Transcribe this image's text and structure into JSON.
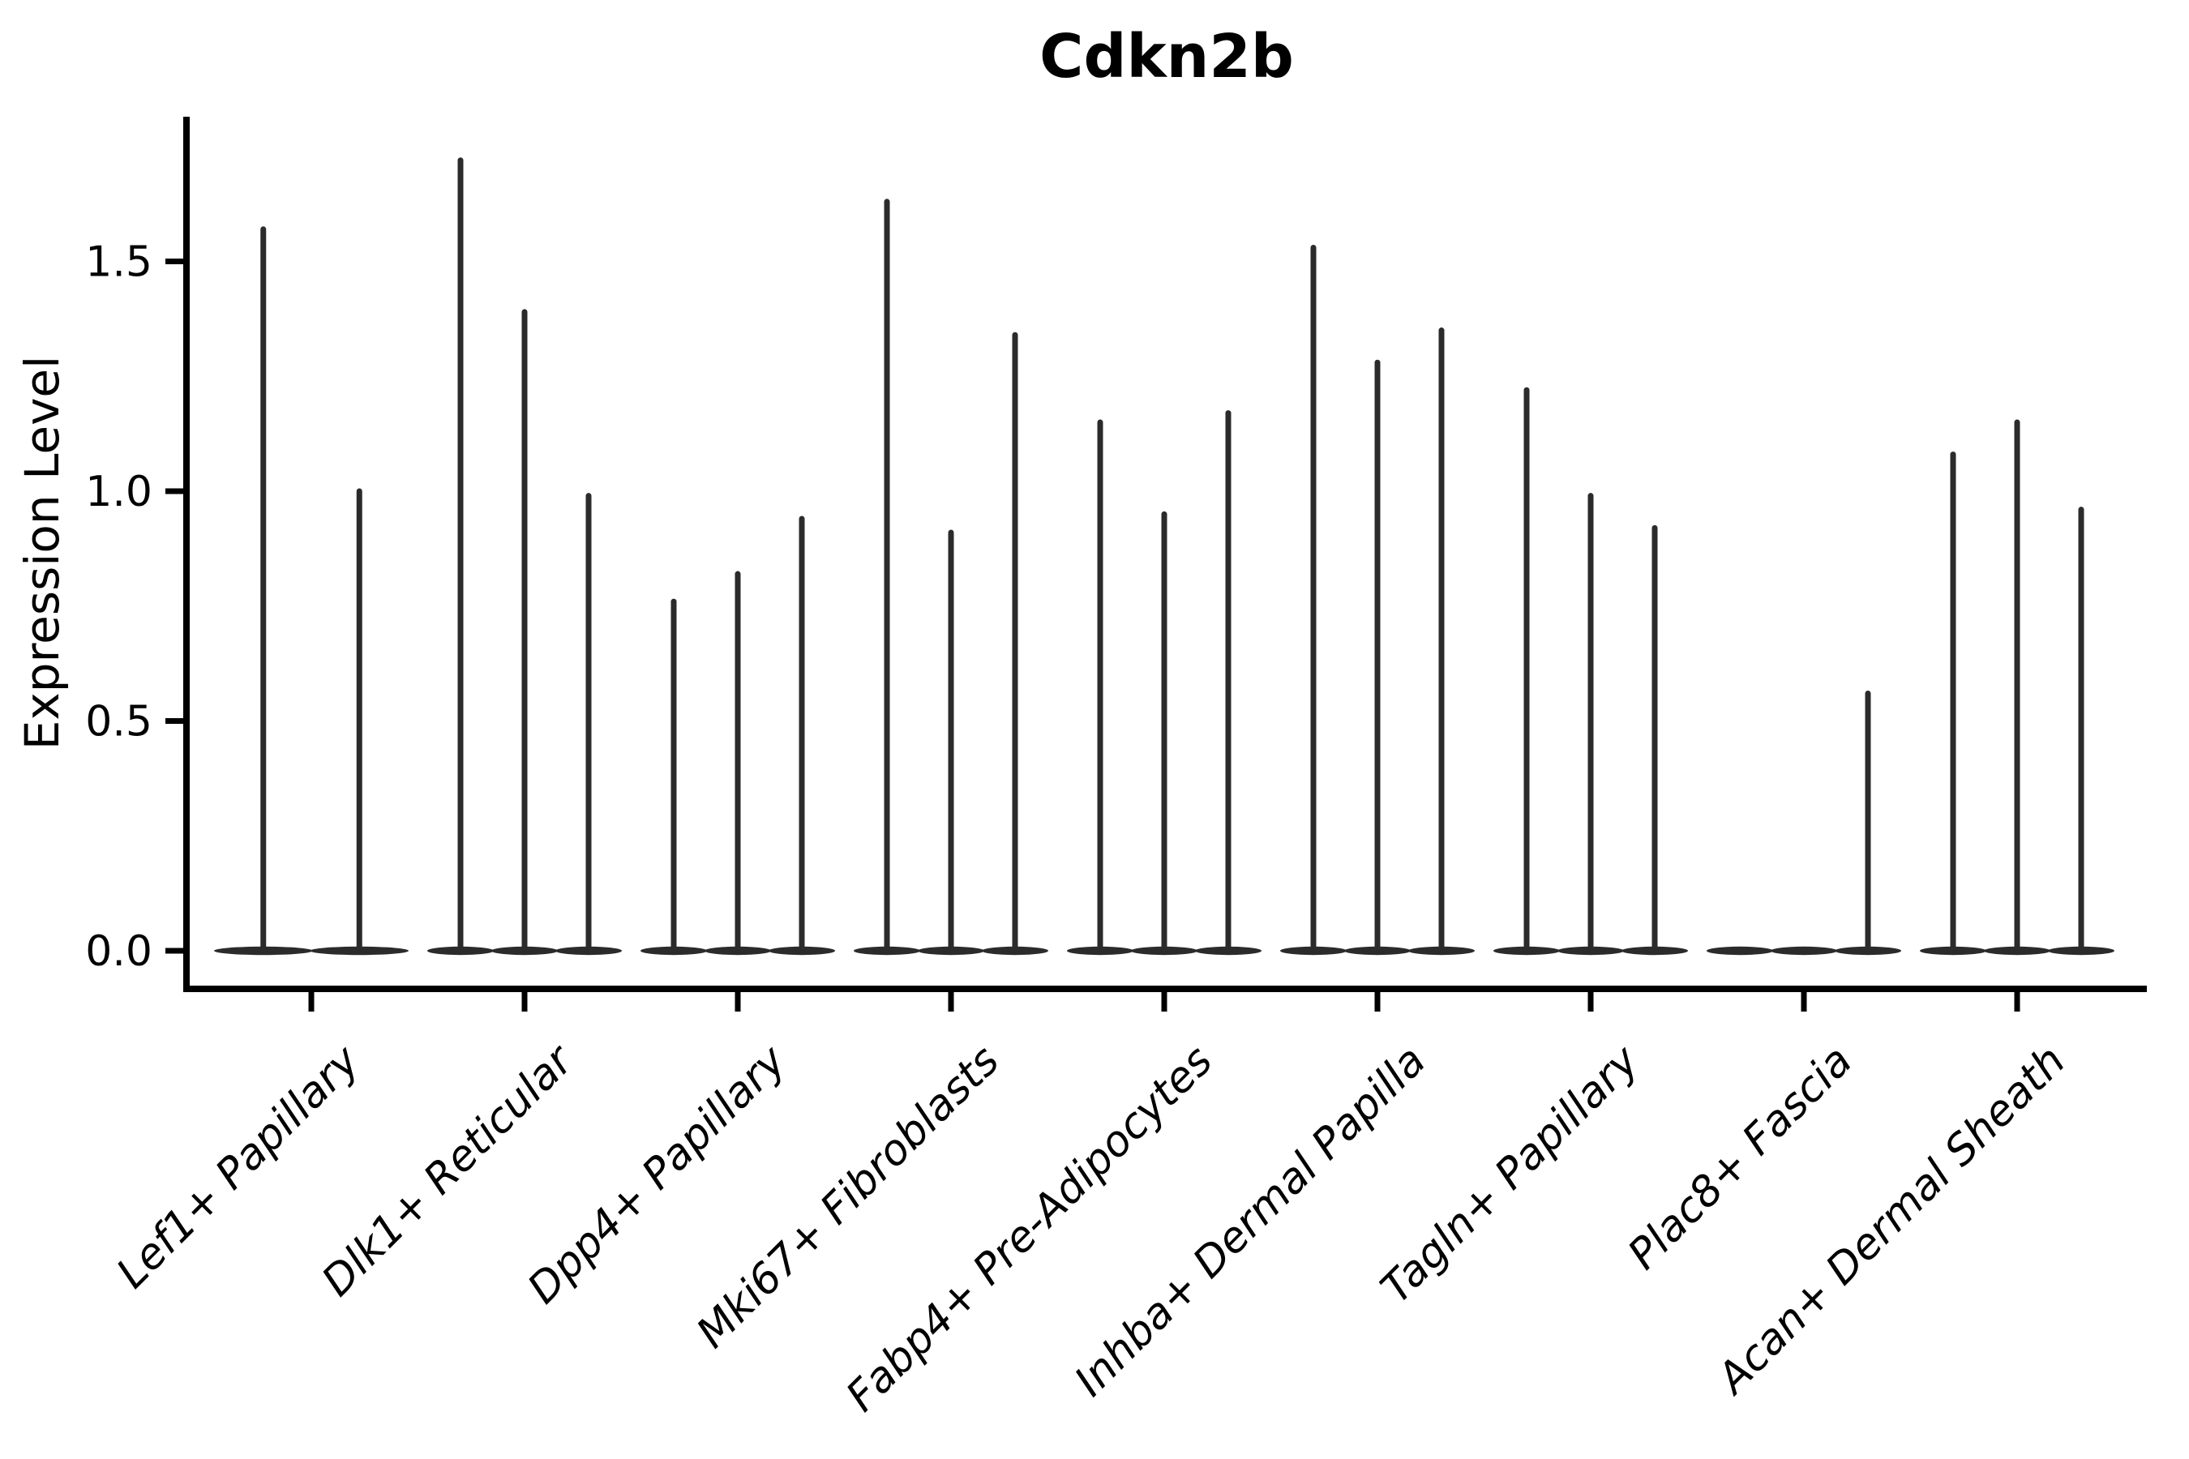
{
  "title": "Cdkn2b",
  "ylabel": "Expression Level",
  "chart_data": {
    "type": "violin",
    "title": "Cdkn2b",
    "xlabel": "",
    "ylabel": "Expression Level",
    "ylim": [
      -0.09,
      1.81
    ],
    "ytick_values": [
      0.0,
      0.5,
      1.0,
      1.5
    ],
    "ytick_labels": [
      "0.0",
      "0.5",
      "1.0",
      "1.5"
    ],
    "grid": false,
    "legend": "none",
    "violin_color": "#2b2b2b",
    "spine_color": "#000000",
    "categories": [
      "Lef1+ Papillary",
      "Dlk1+ Reticular",
      "Dpp4+ Papillary",
      "Mki67+ Fibroblasts",
      "Fabp4+ Pre-Adipocytes",
      "Inhba+ Dermal Papilla",
      "Tagln+ Papillary",
      "Plac8+ Fascia",
      "Acan+ Dermal Sheath"
    ],
    "description": "Each category holds thin needle violins: a flat dense body at expression 0 with a narrow spike rising to the maximum expression value.",
    "groups": [
      {
        "category": "Lef1+ Papillary",
        "violin_maxima": [
          1.57,
          1.0
        ]
      },
      {
        "category": "Dlk1+ Reticular",
        "violin_maxima": [
          1.72,
          1.39,
          0.99
        ]
      },
      {
        "category": "Dpp4+ Papillary",
        "violin_maxima": [
          0.76,
          0.82,
          0.94
        ]
      },
      {
        "category": "Mki67+ Fibroblasts",
        "violin_maxima": [
          1.63,
          0.91,
          1.34
        ]
      },
      {
        "category": "Fabp4+ Pre-Adipocytes",
        "violin_maxima": [
          1.15,
          0.95,
          1.17
        ]
      },
      {
        "category": "Inhba+ Dermal Papilla",
        "violin_maxima": [
          1.53,
          1.28,
          1.35
        ]
      },
      {
        "category": "Tagln+ Papillary",
        "violin_maxima": [
          1.22,
          0.99,
          0.92
        ]
      },
      {
        "category": "Plac8+ Fascia",
        "violin_maxima": [
          0.0,
          0.0,
          0.56
        ]
      },
      {
        "category": "Acan+ Dermal Sheath",
        "violin_maxima": [
          1.08,
          1.15,
          0.96
        ]
      }
    ]
  }
}
